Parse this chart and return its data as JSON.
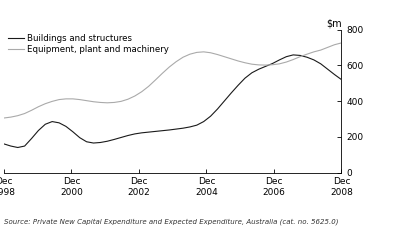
{
  "source_text": "Source: Private New Capital Expenditure and Expected Expenditure, Australia (cat. no. 5625.0)",
  "legend_buildings": "Buildings and structures",
  "legend_equipment": "Equipment, plant and machinery",
  "ylim": [
    0,
    800
  ],
  "yticks": [
    0,
    200,
    400,
    600,
    800
  ],
  "xtick_labels": [
    "Dec\n1998",
    "Dec\n2000",
    "Dec\n2002",
    "Dec\n2004",
    "Dec\n2006",
    "Dec\n2008"
  ],
  "xtick_positions": [
    0,
    8,
    16,
    24,
    32,
    40
  ],
  "color_buildings": "#1a1a1a",
  "color_equipment": "#aaaaaa",
  "buildings": [
    160,
    148,
    140,
    148,
    190,
    235,
    270,
    285,
    278,
    258,
    228,
    195,
    172,
    165,
    168,
    175,
    185,
    196,
    207,
    216,
    222,
    226,
    230,
    234,
    238,
    243,
    248,
    255,
    265,
    285,
    315,
    355,
    400,
    445,
    488,
    528,
    558,
    578,
    594,
    610,
    630,
    648,
    658,
    655,
    645,
    630,
    608,
    578,
    548,
    520
  ],
  "equipment": [
    305,
    310,
    318,
    330,
    348,
    368,
    385,
    398,
    408,
    412,
    412,
    408,
    402,
    396,
    392,
    390,
    392,
    398,
    410,
    428,
    452,
    482,
    518,
    555,
    590,
    620,
    645,
    662,
    672,
    675,
    670,
    660,
    648,
    636,
    624,
    614,
    606,
    602,
    601,
    603,
    608,
    618,
    632,
    648,
    662,
    675,
    685,
    700,
    715,
    725
  ],
  "n_points": 50
}
